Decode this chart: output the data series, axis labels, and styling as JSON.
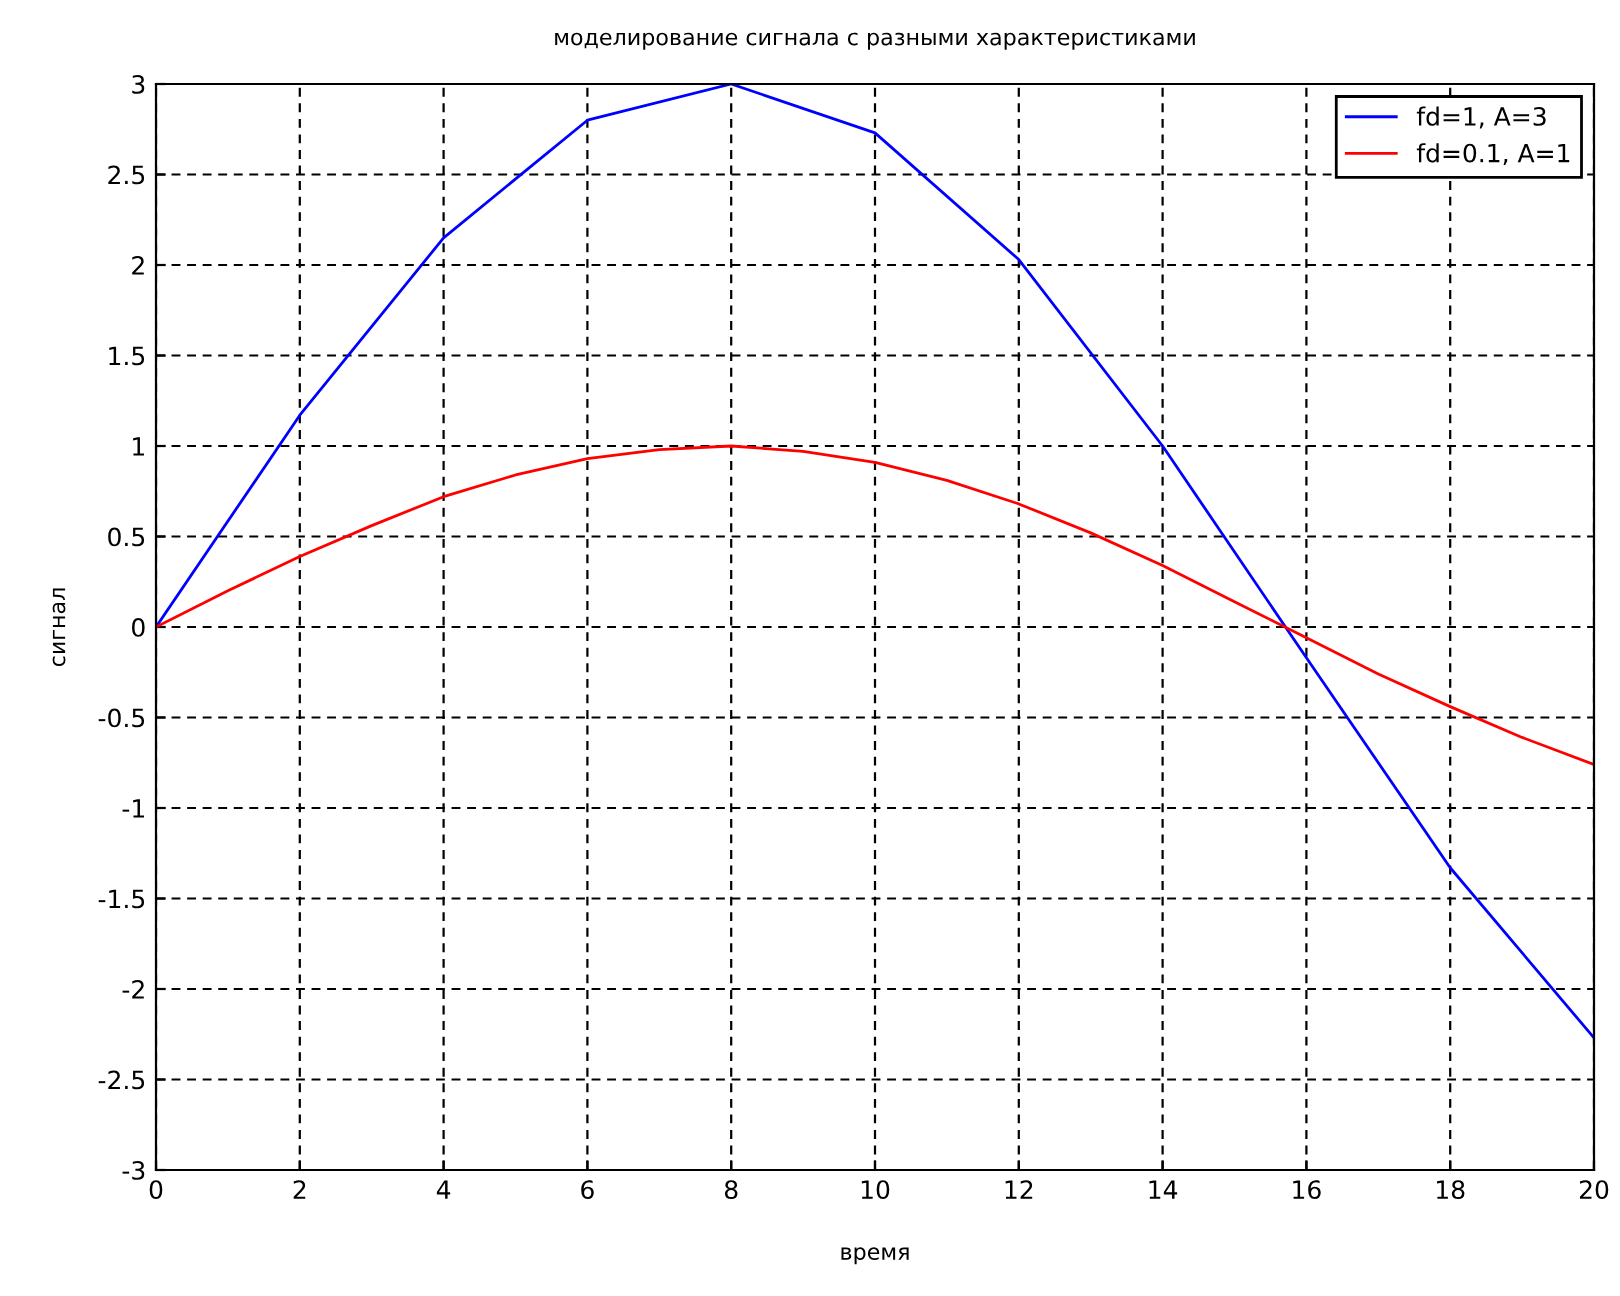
{
  "chart_data": {
    "type": "line",
    "title": "моделирование сигнала с разными характеристиками",
    "xlabel": "время",
    "ylabel": "сигнал",
    "xlim": [
      0,
      20
    ],
    "ylim": [
      -3,
      3
    ],
    "xticks": [
      0,
      2,
      4,
      6,
      8,
      10,
      12,
      14,
      16,
      18,
      20
    ],
    "yticks": [
      -3,
      -2.5,
      -2,
      -1.5,
      -1,
      -0.5,
      0,
      0.5,
      1,
      1.5,
      2,
      2.5,
      3
    ],
    "grid": true,
    "legend": "top right",
    "line_style": "solid",
    "marker": "none",
    "series": [
      {
        "name": "fd=1, A=3",
        "color": "#0000ff",
        "x": [
          0,
          2,
          4,
          6,
          8,
          10,
          12,
          14,
          16,
          18,
          20
        ],
        "values": [
          0,
          1.17,
          2.15,
          2.8,
          3.0,
          2.73,
          2.03,
          1.0,
          -0.17,
          -1.33,
          -2.27
        ]
      },
      {
        "name": "fd=0.1, A=1",
        "color": "#ff0000",
        "x": [
          0,
          1,
          2,
          3,
          4,
          5,
          6,
          7,
          8,
          9,
          10,
          11,
          12,
          13,
          14,
          15,
          16,
          17,
          18,
          19,
          20
        ],
        "values": [
          0,
          0.2,
          0.39,
          0.56,
          0.72,
          0.84,
          0.93,
          0.98,
          1.0,
          0.97,
          0.91,
          0.81,
          0.68,
          0.52,
          0.34,
          0.14,
          -0.06,
          -0.26,
          -0.44,
          -0.61,
          -0.76
        ]
      }
    ]
  }
}
